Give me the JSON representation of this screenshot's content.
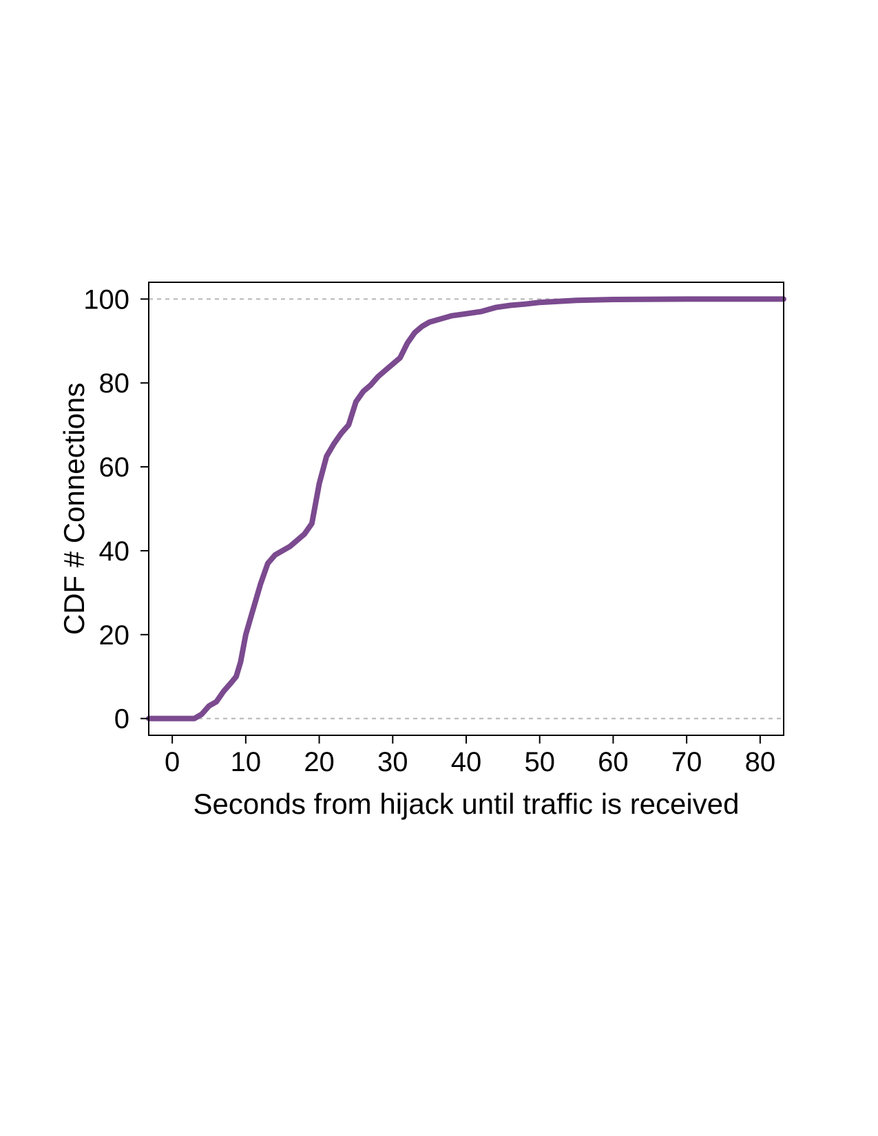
{
  "chart_data": {
    "type": "line",
    "title": "",
    "xlabel": "Seconds from hijack until traffic is received",
    "ylabel": "CDF # Connections",
    "xlim": [
      -3.2,
      83.2
    ],
    "ylim": [
      -4,
      104
    ],
    "xticks": [
      0,
      10,
      20,
      30,
      40,
      50,
      60,
      70,
      80
    ],
    "yticks": [
      0,
      20,
      40,
      60,
      80,
      100
    ],
    "reference_lines": [
      0,
      100
    ],
    "grid": false,
    "legend": "none",
    "colors": {
      "series": "#7b4a8f",
      "reference": "#b5b5b5",
      "axis": "#000000"
    },
    "series": [
      {
        "x": [
          -3.2,
          3,
          4,
          5,
          6,
          7,
          8,
          8.7,
          9.3,
          10,
          11,
          12,
          13,
          14,
          15,
          16,
          17,
          18,
          19,
          20,
          21,
          22,
          23,
          24,
          25,
          26,
          27,
          28,
          29,
          30,
          31,
          32,
          33,
          34,
          35,
          36,
          38,
          40,
          42,
          44,
          46,
          48,
          50,
          55,
          60,
          70,
          83.2
        ],
        "values": [
          0,
          0,
          1,
          3,
          4,
          6.5,
          8.5,
          10,
          13.5,
          20,
          26,
          32,
          37,
          39,
          40,
          41,
          42.5,
          44,
          46.5,
          56,
          62.5,
          65.5,
          68,
          70,
          75.5,
          78,
          79.5,
          81.5,
          83,
          84.5,
          86,
          89.5,
          92,
          93.5,
          94.5,
          95,
          96,
          96.5,
          97,
          98,
          98.5,
          98.8,
          99.2,
          99.7,
          99.9,
          100,
          100
        ]
      }
    ]
  }
}
